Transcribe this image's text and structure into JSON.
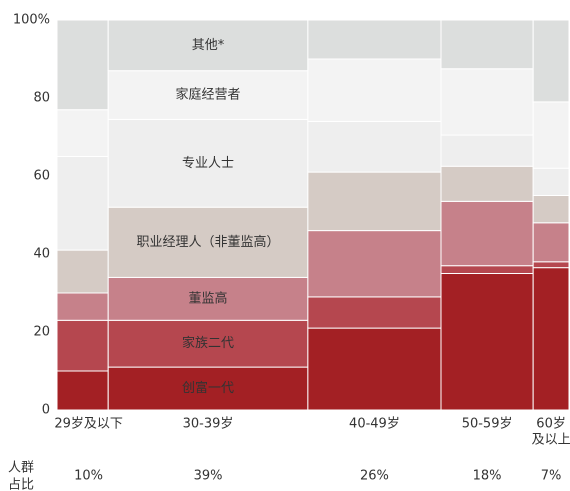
{
  "chart_data": {
    "type": "marimekko",
    "categories": [
      "29岁及以下",
      "30-39岁",
      "40-49岁",
      "50-59岁",
      [
        "60岁",
        "及以上"
      ]
    ],
    "shares": [
      10,
      39,
      26,
      18,
      7
    ],
    "share_labels": [
      "10%",
      "39%",
      "26%",
      "18%",
      "7%"
    ],
    "share_colors": [
      "#c0272d",
      "#c0272d",
      "#555555",
      "#555555",
      "#555555"
    ],
    "share_title": [
      "人群",
      "占比"
    ],
    "label_column": 1,
    "series": [
      {
        "name": "创富一代",
        "color": "#a32024",
        "label_color": "#ffffff",
        "values": [
          10,
          11,
          21,
          35,
          36.5
        ]
      },
      {
        "name": "家族二代",
        "color": "#b5474f",
        "label_color": "#ffffff",
        "values": [
          13,
          12,
          8,
          2,
          1.5
        ]
      },
      {
        "name": "董监高",
        "color": "#c6818a",
        "label_color": "#ffffff",
        "values": [
          7,
          11,
          17,
          16.5,
          10
        ]
      },
      {
        "name": "职业经理人（非董监高）",
        "color": "#d5cbc5",
        "label_color": "#ffffff",
        "values": [
          11,
          18,
          15,
          9,
          7
        ]
      },
      {
        "name": "专业人士",
        "color": "#eeeeee",
        "label_color": "#444444",
        "values": [
          24,
          22.5,
          13,
          8,
          7
        ]
      },
      {
        "name": "家庭经营者",
        "color": "#f3f3f3",
        "label_color": "#444444",
        "values": [
          12,
          12.5,
          16,
          17,
          17
        ]
      },
      {
        "name": "其他*",
        "color": "#dcdedd",
        "label_color": "#444444",
        "values": [
          23,
          13,
          10,
          12.5,
          21
        ]
      }
    ],
    "ylim": [
      0,
      100
    ],
    "yticks": [
      0,
      20,
      40,
      60,
      80,
      {
        "value": 100,
        "label": "100%"
      }
    ]
  }
}
